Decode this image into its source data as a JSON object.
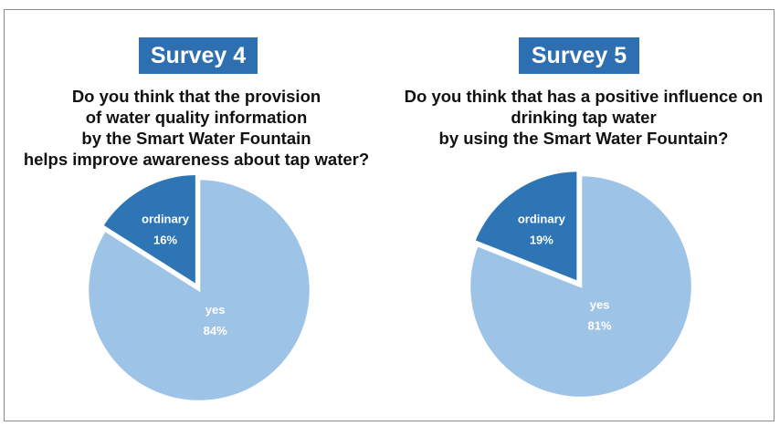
{
  "chart_data": [
    {
      "type": "pie",
      "title": "Survey 4",
      "subtitle_lines": [
        "Do you think that the provision",
        "of water quality information",
        "by the Smart Water Fountain",
        "helps improve awareness about tap water?"
      ],
      "slices": [
        {
          "label": "yes",
          "value": 84,
          "value_label": "84%",
          "color": "#9dc3e6"
        },
        {
          "label": "ordinary",
          "value": 16,
          "value_label": "16%",
          "color": "#2e75b6"
        }
      ]
    },
    {
      "type": "pie",
      "title": "Survey 5",
      "subtitle_lines": [
        "Do you think that has a positive influence on",
        "drinking tap water",
        "by using the Smart Water Fountain?"
      ],
      "slices": [
        {
          "label": "yes",
          "value": 81,
          "value_label": "81%",
          "color": "#9dc3e6"
        },
        {
          "label": "ordinary",
          "value": 19,
          "value_label": "19%",
          "color": "#2e75b6"
        }
      ]
    }
  ],
  "colors": {
    "badge": "#2e6fb1",
    "slice_border": "#ffffff"
  }
}
